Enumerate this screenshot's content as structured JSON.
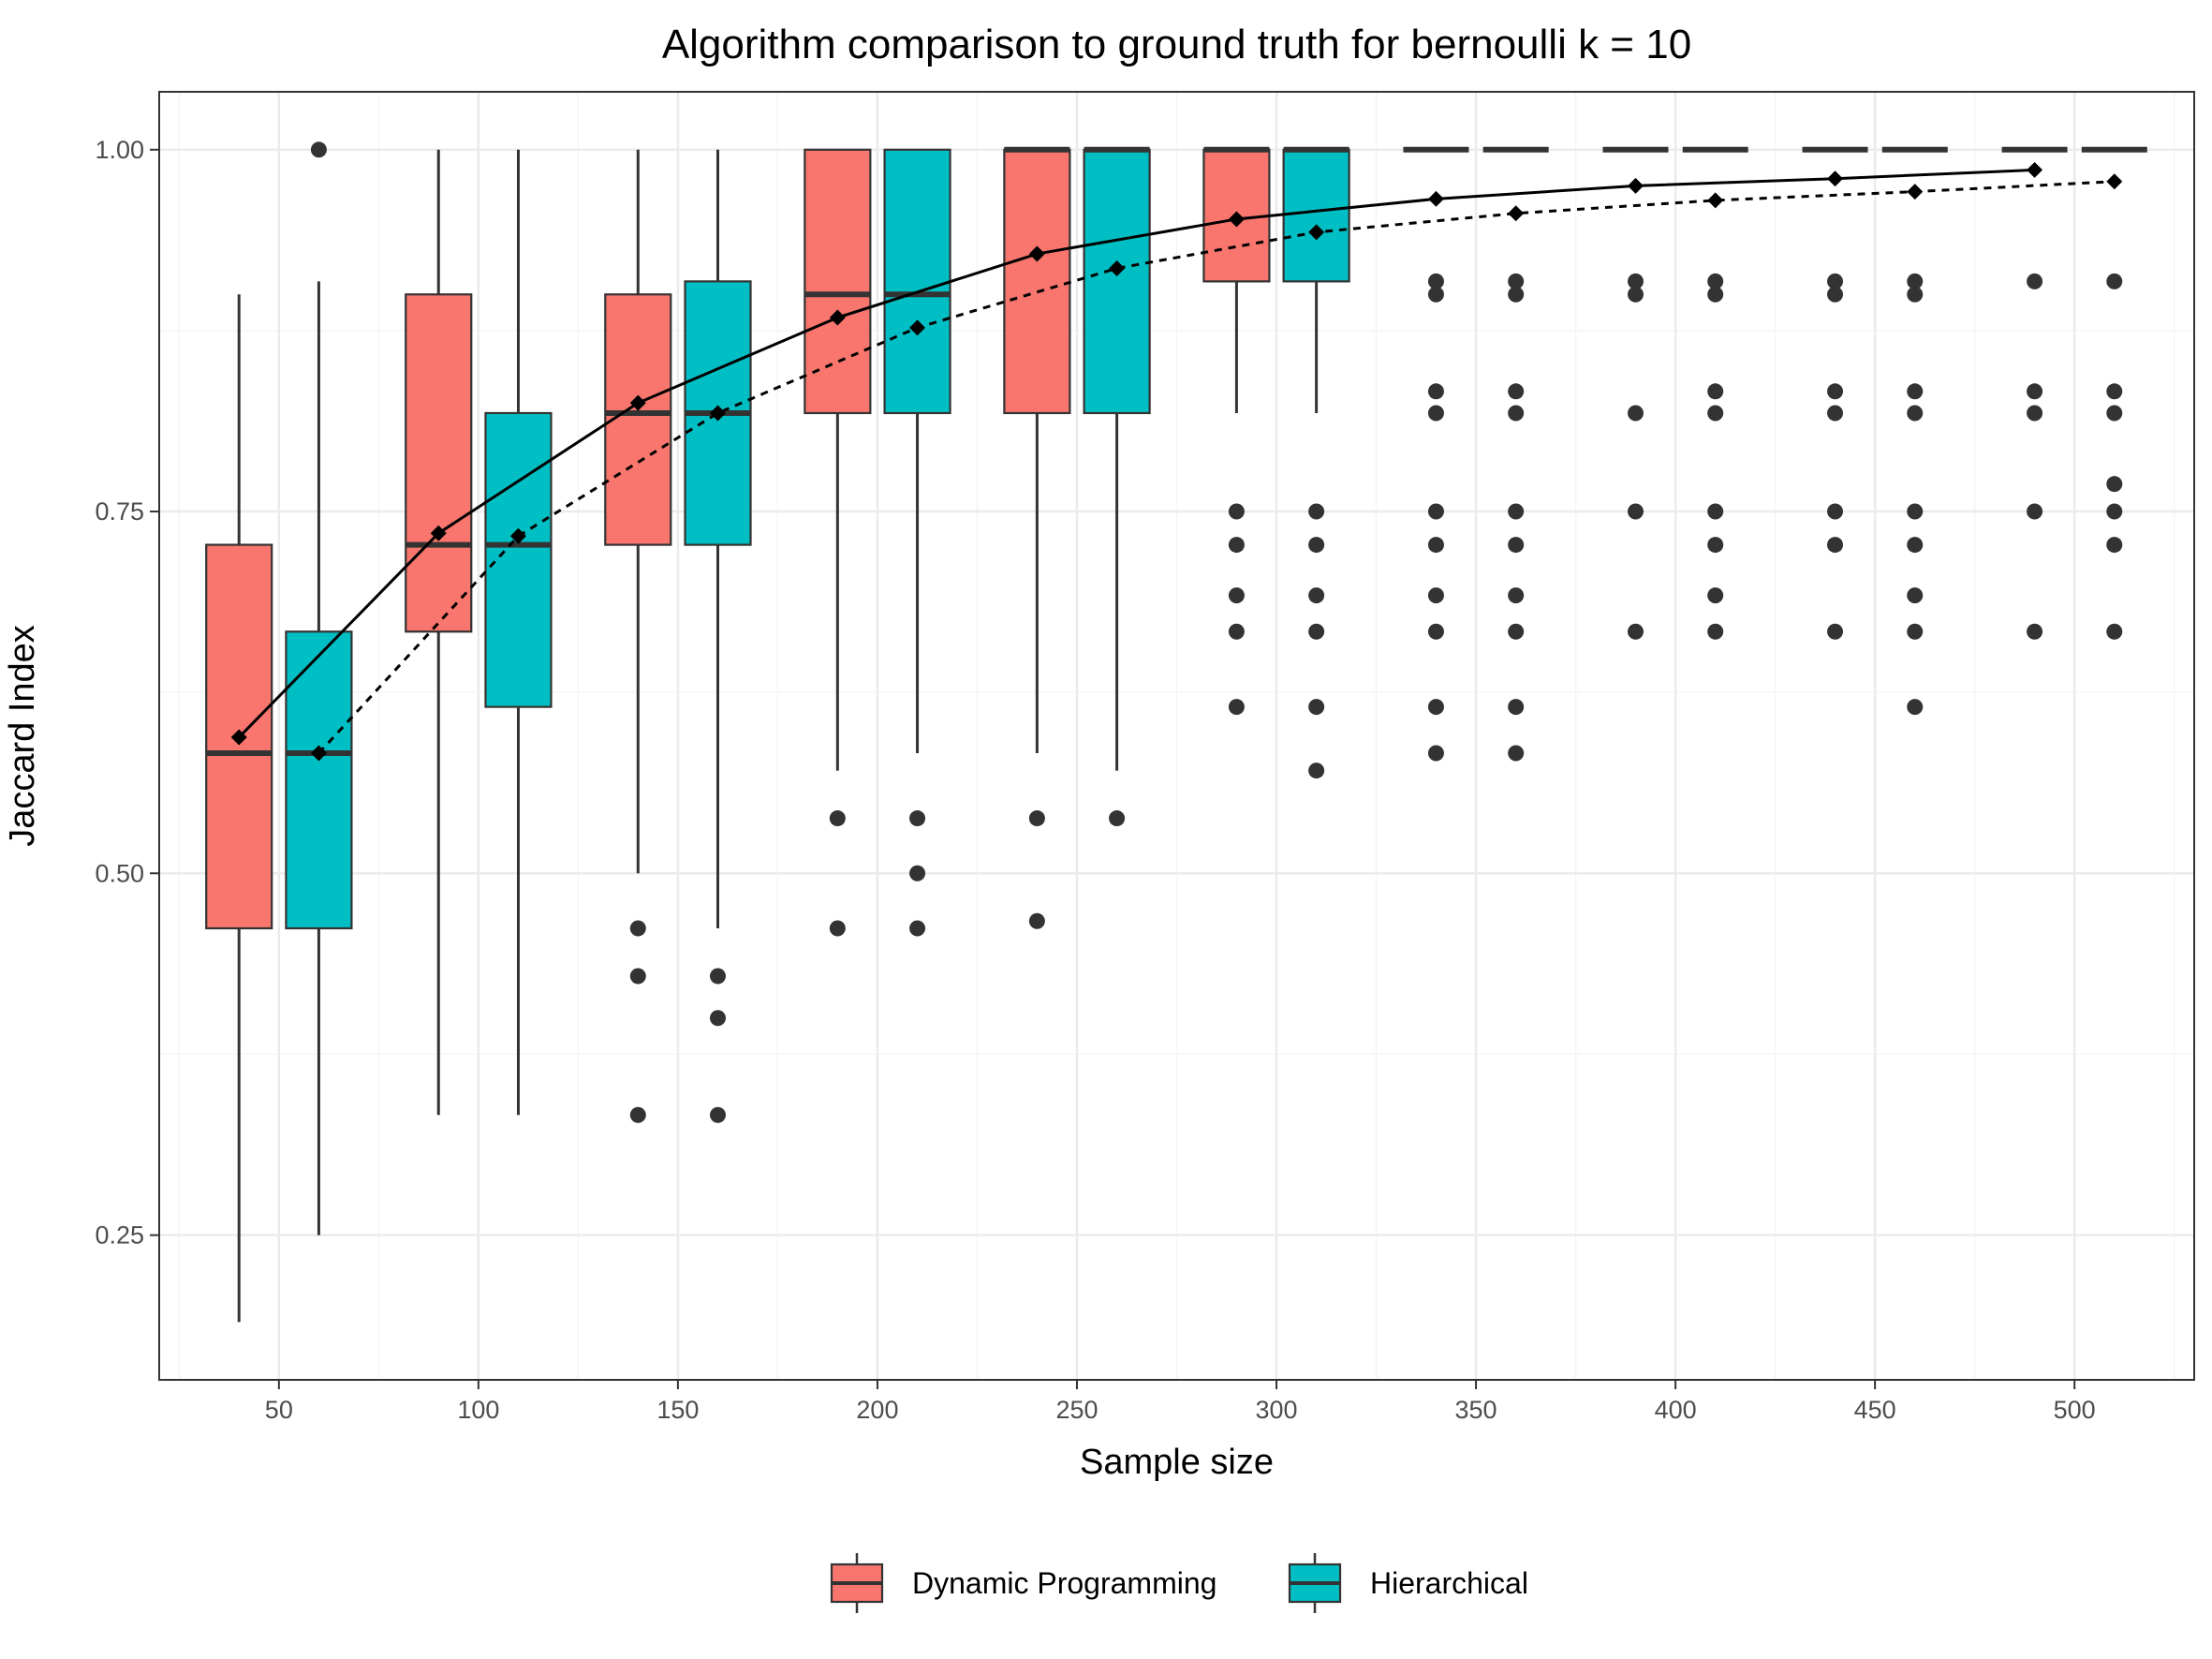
{
  "chart_data": {
    "type": "box",
    "title": "Algorithm comparison to ground truth for bernoulli k = 10",
    "xlabel": "Sample size",
    "ylabel": "Jaccard Index",
    "xlim": [
      20,
      530
    ],
    "ylim": [
      0.15,
      1.04
    ],
    "x_ticks": [
      50,
      100,
      150,
      200,
      250,
      300,
      350,
      400,
      450,
      500
    ],
    "x_tick_labels": [
      "50",
      "100",
      "150",
      "200",
      "250",
      "300",
      "350",
      "400",
      "450",
      "500"
    ],
    "y_ticks": [
      0.25,
      0.5,
      0.75,
      1.0
    ],
    "y_tick_labels": [
      "0.25",
      "0.50",
      "0.75",
      "1.00"
    ],
    "grid": true,
    "legend_position": "bottom",
    "series": [
      {
        "name": "Dynamic Programming",
        "color": "#F8766D",
        "mean_line_style": "solid",
        "boxes": [
          {
            "x": 40,
            "min": 0.19,
            "q1": 0.462,
            "median": 0.583,
            "q3": 0.727,
            "max": 0.9,
            "outliers": []
          },
          {
            "x": 90,
            "min": 0.333,
            "q1": 0.667,
            "median": 0.727,
            "q3": 0.9,
            "max": 1.0,
            "outliers": []
          },
          {
            "x": 140,
            "min": 0.5,
            "q1": 0.727,
            "median": 0.818,
            "q3": 0.9,
            "max": 1.0,
            "outliers": [
              0.462,
              0.429,
              0.333
            ]
          },
          {
            "x": 190,
            "min": 0.571,
            "q1": 0.818,
            "median": 0.9,
            "q3": 1.0,
            "max": 1.0,
            "outliers": [
              0.538,
              0.462
            ]
          },
          {
            "x": 240,
            "min": 0.583,
            "q1": 0.818,
            "median": 1.0,
            "q3": 1.0,
            "max": 1.0,
            "outliers": [
              0.538,
              0.467
            ]
          },
          {
            "x": 290,
            "min": 0.818,
            "q1": 0.909,
            "median": 1.0,
            "q3": 1.0,
            "max": 1.0,
            "outliers": [
              0.75,
              0.727,
              0.692,
              0.667,
              0.615
            ]
          },
          {
            "x": 340,
            "min": 1.0,
            "q1": 1.0,
            "median": 1.0,
            "q3": 1.0,
            "max": 1.0,
            "outliers": [
              0.909,
              0.9,
              0.833,
              0.818,
              0.75,
              0.727,
              0.692,
              0.667,
              0.615,
              0.583
            ]
          },
          {
            "x": 390,
            "min": 1.0,
            "q1": 1.0,
            "median": 1.0,
            "q3": 1.0,
            "max": 1.0,
            "outliers": [
              0.909,
              0.9,
              0.818,
              0.75,
              0.667
            ]
          },
          {
            "x": 440,
            "min": 1.0,
            "q1": 1.0,
            "median": 1.0,
            "q3": 1.0,
            "max": 1.0,
            "outliers": [
              0.909,
              0.9,
              0.833,
              0.818,
              0.75,
              0.727,
              0.667
            ]
          },
          {
            "x": 490,
            "min": 1.0,
            "q1": 1.0,
            "median": 1.0,
            "q3": 1.0,
            "max": 1.0,
            "outliers": [
              0.909,
              0.833,
              0.818,
              0.75,
              0.667
            ]
          }
        ],
        "means": [
          0.594,
          0.735,
          0.825,
          0.884,
          0.928,
          0.952,
          0.966,
          0.975,
          0.98,
          0.986
        ]
      },
      {
        "name": "Hierarchical",
        "color": "#00BFC4",
        "mean_line_style": "dashed",
        "boxes": [
          {
            "x": 60,
            "min": 0.25,
            "q1": 0.462,
            "median": 0.583,
            "q3": 0.667,
            "max": 0.909,
            "outliers": [
              1.0
            ]
          },
          {
            "x": 110,
            "min": 0.333,
            "q1": 0.615,
            "median": 0.727,
            "q3": 0.818,
            "max": 1.0,
            "outliers": []
          },
          {
            "x": 160,
            "min": 0.462,
            "q1": 0.727,
            "median": 0.818,
            "q3": 0.909,
            "max": 1.0,
            "outliers": [
              0.429,
              0.4,
              0.333
            ]
          },
          {
            "x": 210,
            "min": 0.583,
            "q1": 0.818,
            "median": 0.9,
            "q3": 1.0,
            "max": 1.0,
            "outliers": [
              0.538,
              0.5,
              0.462
            ]
          },
          {
            "x": 260,
            "min": 0.571,
            "q1": 0.818,
            "median": 1.0,
            "q3": 1.0,
            "max": 1.0,
            "outliers": [
              0.538
            ]
          },
          {
            "x": 310,
            "min": 0.818,
            "q1": 0.909,
            "median": 1.0,
            "q3": 1.0,
            "max": 1.0,
            "outliers": [
              0.75,
              0.727,
              0.692,
              0.667,
              0.615,
              0.571
            ]
          },
          {
            "x": 360,
            "min": 1.0,
            "q1": 1.0,
            "median": 1.0,
            "q3": 1.0,
            "max": 1.0,
            "outliers": [
              0.909,
              0.9,
              0.833,
              0.818,
              0.75,
              0.727,
              0.692,
              0.667,
              0.615,
              0.583
            ]
          },
          {
            "x": 410,
            "min": 1.0,
            "q1": 1.0,
            "median": 1.0,
            "q3": 1.0,
            "max": 1.0,
            "outliers": [
              0.909,
              0.9,
              0.833,
              0.818,
              0.75,
              0.727,
              0.692,
              0.667
            ]
          },
          {
            "x": 460,
            "min": 1.0,
            "q1": 1.0,
            "median": 1.0,
            "q3": 1.0,
            "max": 1.0,
            "outliers": [
              0.909,
              0.9,
              0.833,
              0.818,
              0.75,
              0.727,
              0.692,
              0.667,
              0.615
            ]
          },
          {
            "x": 510,
            "min": 1.0,
            "q1": 1.0,
            "median": 1.0,
            "q3": 1.0,
            "max": 1.0,
            "outliers": [
              0.909,
              0.833,
              0.818,
              0.769,
              0.75,
              0.727,
              0.667
            ]
          }
        ],
        "means": [
          0.583,
          0.733,
          0.818,
          0.877,
          0.918,
          0.943,
          0.956,
          0.965,
          0.971,
          0.978
        ]
      }
    ],
    "colors": {
      "panel_border": "#333333",
      "grid_major": "#EBEBEB",
      "grid_minor": "#F5F5F5",
      "box_outline": "#333333",
      "outlier": "#333333",
      "mean_marker": "#000000"
    }
  }
}
